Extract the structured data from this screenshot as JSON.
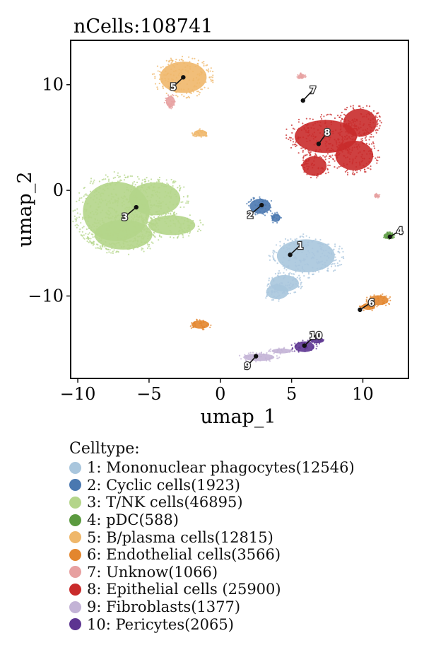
{
  "chart_data": {
    "type": "scatter",
    "title": "nCells:108741",
    "xlabel": "umap_1",
    "ylabel": "umap_2",
    "xlim": [
      -10.5,
      13.2
    ],
    "ylim": [
      -17.8,
      14.2
    ],
    "xticks": [
      -10,
      -5,
      0,
      5,
      10
    ],
    "xtick_labels": [
      "−10",
      "−5",
      "0",
      "5",
      "10"
    ],
    "yticks": [
      10,
      0,
      -10
    ],
    "ytick_labels": [
      "10",
      "0",
      "−10"
    ],
    "grid": false,
    "legend_position": "bottom-left",
    "legend_title": "Celltype:",
    "series": [
      {
        "name": "1: Mononuclear phagocytes(12546)",
        "label": "1",
        "color": "#a9c6dd",
        "centroid": [
          4.9,
          -6.1
        ],
        "label_pos": [
          5.6,
          -5.2
        ],
        "regions": [
          [
            6.0,
            -6.2,
            2.6,
            2.0
          ],
          [
            4.5,
            -8.8,
            1.3,
            1.0
          ],
          [
            4.0,
            -9.6,
            1.0,
            0.9
          ]
        ]
      },
      {
        "name": "2: Cyclic cells(1923)",
        "label": "2",
        "color": "#4a78b0",
        "centroid": [
          2.9,
          -1.4
        ],
        "label_pos": [
          2.1,
          -2.3
        ],
        "regions": [
          [
            2.8,
            -1.5,
            0.95,
            0.9
          ],
          [
            3.9,
            -2.6,
            0.4,
            0.5
          ]
        ]
      },
      {
        "name": "3: T/NK cells(46895)",
        "label": "3",
        "color": "#b4d58a",
        "centroid": [
          -5.9,
          -1.6
        ],
        "label_pos": [
          -6.7,
          -2.5
        ],
        "regions": [
          [
            -7.3,
            -2.0,
            3.0,
            3.6
          ],
          [
            -4.6,
            -0.8,
            2.3,
            2.0
          ],
          [
            -3.4,
            -3.3,
            2.1,
            1.2
          ],
          [
            -6.8,
            -4.2,
            2.6,
            1.8
          ]
        ]
      },
      {
        "name": "4: pDC(588)",
        "label": "4",
        "color": "#5b9a3f",
        "centroid": [
          11.9,
          -4.4
        ],
        "label_pos": [
          12.6,
          -3.8
        ],
        "regions": [
          [
            11.8,
            -4.3,
            0.45,
            0.35
          ]
        ]
      },
      {
        "name": "5: B/plasma cells(12815)",
        "label": "5",
        "color": "#efb76a",
        "centroid": [
          -2.6,
          10.7
        ],
        "label_pos": [
          -3.3,
          9.8
        ],
        "regions": [
          [
            -2.6,
            10.7,
            2.1,
            1.9
          ],
          [
            -1.4,
            5.4,
            0.6,
            0.4
          ]
        ]
      },
      {
        "name": "6: Endothelial cells(3566)",
        "label": "6",
        "color": "#e3862e",
        "centroid": [
          9.8,
          -11.3
        ],
        "label_pos": [
          10.6,
          -10.6
        ],
        "regions": [
          [
            11.1,
            -10.4,
            0.9,
            0.6
          ],
          [
            10.4,
            -11.0,
            0.6,
            0.4
          ],
          [
            -1.4,
            -12.7,
            0.8,
            0.5
          ]
        ]
      },
      {
        "name": "7: Unknow(1066)",
        "label": "7",
        "color": "#e7a0a0",
        "centroid": [
          5.8,
          8.5
        ],
        "label_pos": [
          6.5,
          9.5
        ],
        "regions": [
          [
            5.7,
            10.8,
            0.3,
            0.3
          ],
          [
            -3.5,
            8.4,
            0.4,
            0.7
          ],
          [
            11.0,
            -0.5,
            0.2,
            0.2
          ]
        ]
      },
      {
        "name": "8: Epithelial cells (25900)",
        "label": "8",
        "color": "#c92b2b",
        "centroid": [
          6.9,
          4.4
        ],
        "label_pos": [
          7.5,
          5.5
        ],
        "regions": [
          [
            7.4,
            5.1,
            2.8,
            2.0
          ],
          [
            9.8,
            6.4,
            1.5,
            1.7
          ],
          [
            9.4,
            3.3,
            1.7,
            1.8
          ],
          [
            6.6,
            2.3,
            1.1,
            1.2
          ]
        ]
      },
      {
        "name": "9: Fibroblasts(1377)",
        "label": "9",
        "color": "#c3b3d6",
        "centroid": [
          2.5,
          -15.7
        ],
        "label_pos": [
          1.9,
          -16.6
        ],
        "regions": [
          [
            2.7,
            -15.8,
            1.4,
            0.45
          ],
          [
            4.3,
            -15.2,
            0.9,
            0.3
          ]
        ]
      },
      {
        "name": "10: Pericytes(2065)",
        "label": "10",
        "color": "#5d3591",
        "centroid": [
          5.9,
          -14.7
        ],
        "label_pos": [
          6.7,
          -13.7
        ],
        "regions": [
          [
            5.9,
            -14.8,
            0.9,
            0.65
          ],
          [
            6.8,
            -14.2,
            0.6,
            0.35
          ]
        ]
      }
    ]
  }
}
